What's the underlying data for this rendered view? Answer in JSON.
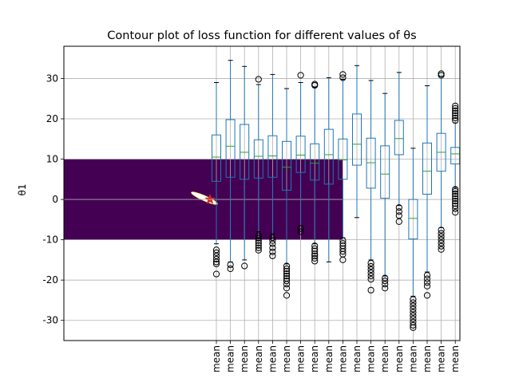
{
  "chart_data": {
    "type": "box",
    "title": "Contour plot of loss function for different values of θs",
    "ylabel": "θ1",
    "xlabel": "",
    "ylim": [
      -35,
      38
    ],
    "y_ticks": [
      -30,
      -20,
      -10,
      0,
      10,
      20,
      30
    ],
    "grid": true,
    "contour_region": {
      "y_min": -10,
      "y_max": 10,
      "color": "#440154"
    },
    "marker": {
      "symbol": "star",
      "color": "#d62728",
      "y": 0
    },
    "categories": [
      "mean",
      "mean",
      "mean",
      "mean",
      "mean",
      "mean",
      "mean",
      "mean",
      "mean",
      "mean",
      "mean",
      "mean",
      "mean",
      "mean",
      "mean",
      "mean",
      "mean",
      "mean"
    ],
    "boxes": [
      {
        "whislo": -11,
        "q1": 4.5,
        "med": 10.5,
        "q3": 16,
        "whishi": 29,
        "fliers": [
          -12.5,
          -13.2,
          -14,
          -14.8,
          -15.5,
          -16,
          -18.5
        ]
      },
      {
        "whislo": -15.5,
        "q1": 5.5,
        "med": 13.2,
        "q3": 19.8,
        "whishi": 34.5,
        "fliers": [
          -16.2,
          -17.2
        ]
      },
      {
        "whislo": -15,
        "q1": 5,
        "med": 11.7,
        "q3": 18.6,
        "whishi": 33,
        "fliers": [
          -16.5
        ]
      },
      {
        "whislo": -8,
        "q1": 5.3,
        "med": 10.7,
        "q3": 14.8,
        "whishi": 28.5,
        "fliers": [
          -9,
          -9.6,
          -10.2,
          -10.8,
          -11.4,
          -12,
          -12.6,
          29.8
        ]
      },
      {
        "whislo": -8.5,
        "q1": 5.5,
        "med": 10.8,
        "q3": 15.8,
        "whishi": 31,
        "fliers": [
          -9.5,
          -10.2,
          -11,
          -12,
          -13,
          -14
        ]
      },
      {
        "whislo": -16,
        "q1": 2.3,
        "med": 8,
        "q3": 14.4,
        "whishi": 27.5,
        "fliers": [
          -16.5,
          -17.2,
          -17.8,
          -18.4,
          -19,
          -19.6,
          -20.2,
          -21,
          -22,
          -23.8
        ]
      },
      {
        "whislo": -6.5,
        "q1": 6.7,
        "med": 11,
        "q3": 15.7,
        "whishi": 29,
        "fliers": [
          -7.2,
          -8,
          30.8
        ]
      },
      {
        "whislo": -11,
        "q1": 4.8,
        "med": 9,
        "q3": 13.8,
        "whishi": 27.8,
        "fliers": [
          -11.5,
          -12.2,
          -12.8,
          -13.5,
          -14,
          -14.6,
          -15.3,
          28.3,
          28.6
        ]
      },
      {
        "whislo": -15.5,
        "q1": 3.8,
        "med": 11.1,
        "q3": 17.4,
        "whishi": 30.2,
        "fliers": []
      },
      {
        "whislo": -9.5,
        "q1": 5,
        "med": 9.8,
        "q3": 15,
        "whishi": 29.8,
        "fliers": [
          -10.2,
          -10.9,
          -11.5,
          -12.2,
          -12.9,
          -13.6,
          -15,
          30.2,
          31
        ]
      },
      {
        "whislo": -4.5,
        "q1": 8.5,
        "med": 13.7,
        "q3": 21.2,
        "whishi": 33.2,
        "fliers": []
      },
      {
        "whislo": -15,
        "q1": 2.8,
        "med": 9.1,
        "q3": 15.2,
        "whishi": 29.5,
        "fliers": [
          -15.8,
          -16.6,
          -17.4,
          -18.2,
          -19,
          -19.8,
          -22.5
        ]
      },
      {
        "whislo": -19,
        "q1": 0.3,
        "med": 6.3,
        "q3": 13.3,
        "whishi": 26.3,
        "fliers": [
          -19.5,
          -20.2,
          -21,
          -22
        ]
      },
      {
        "whislo": -1.5,
        "q1": 11.1,
        "med": 15.1,
        "q3": 19.6,
        "whishi": 31.5,
        "fliers": [
          -2,
          -3,
          -4,
          -5.5
        ]
      },
      {
        "whislo": -24,
        "q1": -9.8,
        "med": -4.7,
        "q3": 0,
        "whishi": 12.7,
        "fliers": [
          -24.8,
          -25.6,
          -26.4,
          -27.2,
          -28,
          -28.8,
          -29.6,
          -30.4,
          -31.2,
          -31.8
        ]
      },
      {
        "whislo": -18,
        "q1": 1.3,
        "med": 7,
        "q3": 14,
        "whishi": 28.2,
        "fliers": [
          -18.8,
          -19.7,
          -20.6,
          -21.5,
          -23.8
        ]
      },
      {
        "whislo": -7,
        "q1": 7,
        "med": 11.7,
        "q3": 16.4,
        "whishi": 30.5,
        "fliers": [
          -7.6,
          -8.4,
          -9.2,
          -10,
          -10.8,
          -11.6,
          -12.4,
          30.8,
          31.2
        ]
      },
      {
        "whislo": 3,
        "q1": 8.8,
        "med": 11.3,
        "q3": 12.9,
        "whishi": 19,
        "fliers": [
          2.5,
          2,
          1.4,
          0.8,
          0.2,
          -0.4,
          -1,
          -1.6,
          -2.3,
          -3.2,
          19.6,
          20.2,
          20.8,
          21.4,
          22,
          22.6,
          23.2
        ]
      }
    ]
  },
  "colors": {
    "box": "#1f77b4",
    "median": "#2ca02c",
    "contour": "#440154",
    "star": "#d62728",
    "grid": "#b0b0b0"
  }
}
